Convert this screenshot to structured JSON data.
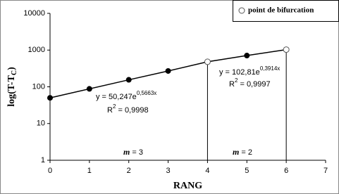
{
  "chart_data": {
    "type": "line",
    "y_label": {
      "text": "log(T-T",
      "sub": "C",
      "tail": ")"
    },
    "x_label": "RANG",
    "x": [
      0,
      1,
      2,
      3,
      4,
      5,
      6
    ],
    "series": [
      {
        "color": "#000000",
        "marker": "filled",
        "values": [
          50,
          88,
          155,
          270,
          480,
          710,
          1030
        ]
      },
      {
        "name": "point de bifurcation",
        "color": "#ffffff",
        "marker": "open",
        "x": [
          4,
          6
        ],
        "values": [
          480,
          1030
        ],
        "droplines": true
      }
    ],
    "xlim": [
      0,
      7
    ],
    "xticks": [
      0,
      1,
      2,
      3,
      4,
      5,
      6,
      7
    ],
    "ylim": [
      1,
      10000
    ],
    "yticks": [
      1,
      10,
      100,
      1000,
      10000
    ],
    "log_y": true,
    "legend": "top-right",
    "annotations": [
      {
        "text": "y = 50,247e",
        "sup": "0,5663x"
      },
      {
        "text": "R",
        "sup": "2",
        "tail": " = 0,9998"
      },
      {
        "text": "y = 102,81e",
        "sup": "0,3914x"
      },
      {
        "text": "R",
        "sup": "2",
        "tail": " = 0,9997"
      },
      {
        "italic": "m",
        "tail": " = 3"
      },
      {
        "italic": "m",
        "tail": " = 2"
      }
    ]
  }
}
